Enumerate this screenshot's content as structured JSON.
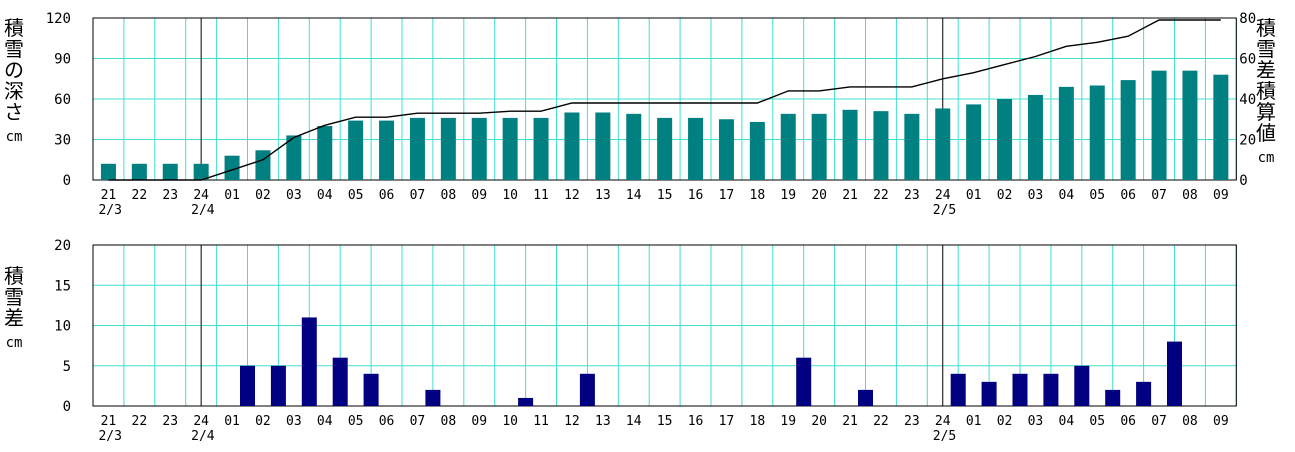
{
  "colors": {
    "grid": "#40e0d0",
    "depth_bar": "#008080",
    "diff_bar": "#000080",
    "line": "#000000"
  },
  "hour_labels": [
    "21",
    "22",
    "23",
    "24",
    "01",
    "02",
    "03",
    "04",
    "05",
    "06",
    "07",
    "08",
    "09",
    "10",
    "11",
    "12",
    "13",
    "14",
    "15",
    "16",
    "17",
    "18",
    "19",
    "20",
    "21",
    "22",
    "23",
    "24",
    "01",
    "02",
    "03",
    "04",
    "05",
    "06",
    "07",
    "08",
    "09"
  ],
  "date_labels": [
    {
      "label": "2/3",
      "hour_index": 0
    },
    {
      "label": "2/4",
      "hour_index": 3
    },
    {
      "label": "2/5",
      "hour_index": 27
    }
  ],
  "top_chart": {
    "left_axis_label": "積雪の深さ",
    "left_axis_unit": "cm",
    "right_axis_label": "積雪差積算値",
    "right_axis_unit": "cm"
  },
  "bottom_chart": {
    "left_axis_label": "積雪差",
    "left_axis_unit": "cm"
  },
  "chart_data": [
    {
      "type": "bar",
      "series": [
        {
          "name": "積雪の深さ",
          "axis": "left",
          "values": [
            12,
            12,
            12,
            12,
            18,
            22,
            33,
            40,
            44,
            44,
            46,
            46,
            46,
            46,
            46,
            50,
            50,
            49,
            46,
            46,
            45,
            43,
            49,
            49,
            52,
            51,
            49,
            53,
            56,
            60,
            63,
            69,
            70,
            74,
            81,
            81,
            78
          ]
        },
        {
          "name": "積雪差積算値",
          "axis": "right",
          "type": "line",
          "values": [
            0,
            0,
            0,
            0,
            5,
            10,
            21,
            27,
            31,
            31,
            33,
            33,
            33,
            34,
            34,
            38,
            38,
            38,
            38,
            38,
            38,
            38,
            44,
            44,
            46,
            46,
            46,
            50,
            53,
            57,
            61,
            66,
            68,
            71,
            79,
            79,
            79
          ]
        }
      ],
      "ylim_left": [
        0,
        120
      ],
      "yticks_left": [
        0,
        30,
        60,
        90,
        120
      ],
      "ylim_right": [
        0,
        80
      ],
      "yticks_right": [
        0,
        20,
        40,
        60,
        80
      ]
    },
    {
      "type": "bar",
      "series": [
        {
          "name": "積雪差",
          "values": [
            0,
            0,
            0,
            0,
            5,
            5,
            11,
            6,
            4,
            0,
            2,
            0,
            0,
            1,
            0,
            4,
            0,
            0,
            0,
            0,
            0,
            0,
            6,
            0,
            2,
            0,
            0,
            4,
            3,
            4,
            4,
            5,
            2,
            3,
            8,
            0,
            0
          ]
        }
      ],
      "ylim": [
        0,
        20
      ],
      "yticks": [
        0,
        5,
        10,
        15,
        20
      ]
    }
  ]
}
